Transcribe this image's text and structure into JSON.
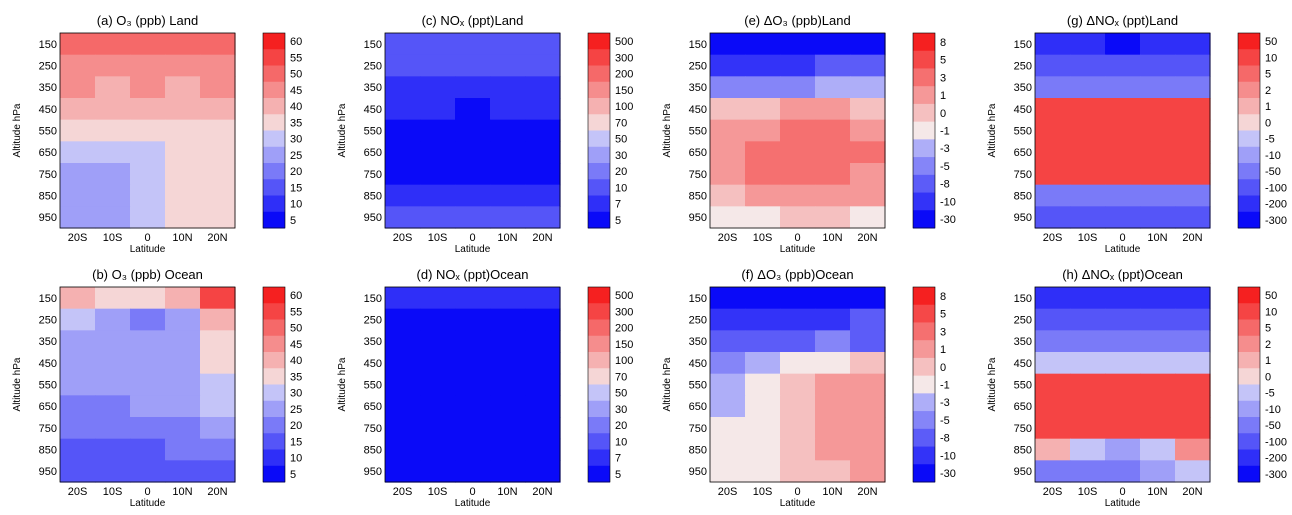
{
  "figure": {
    "panels": [
      {
        "key": "a",
        "title": "(a)  O₃ (ppb) Land",
        "xlabel": "Latitude",
        "ylabel": "Altitude hPa",
        "levels": [
          "60",
          "55",
          "50",
          "45",
          "40",
          "35",
          "30",
          "25",
          "20",
          "15",
          "10",
          "5"
        ],
        "diverging": false
      },
      {
        "key": "c",
        "title": "(c)  NOₓ (ppt)Land",
        "xlabel": "Latitude",
        "ylabel": "Altitude hPa",
        "levels": [
          "500",
          "300",
          "200",
          "150",
          "100",
          "70",
          "50",
          "30",
          "20",
          "10",
          "7",
          "5"
        ],
        "diverging": false
      },
      {
        "key": "e",
        "title": "(e) ΔO₃ (ppb)Land",
        "xlabel": "Latitude",
        "ylabel": "Altitude hPa",
        "levels": [
          "8",
          "5",
          "3",
          "1",
          "0",
          "-1",
          "-3",
          "-5",
          "-8",
          "-10",
          "-30"
        ],
        "diverging": true
      },
      {
        "key": "g",
        "title": "(g)  ΔNOₓ (ppt)Land",
        "xlabel": "Latitude",
        "ylabel": "Altitude hPa",
        "levels": [
          "50",
          "10",
          "5",
          "2",
          "1",
          "0",
          "-5",
          "-10",
          "-50",
          "-100",
          "-200",
          "-300"
        ],
        "diverging": true
      },
      {
        "key": "b",
        "title": "(b)  O₃ (ppb) Ocean",
        "xlabel": "Latitude",
        "ylabel": "Altitude hPa",
        "levels": [
          "60",
          "55",
          "50",
          "45",
          "40",
          "35",
          "30",
          "25",
          "20",
          "15",
          "10",
          "5"
        ],
        "diverging": false
      },
      {
        "key": "d",
        "title": "(d)  NOₓ (ppt)Ocean",
        "xlabel": "Latitude",
        "ylabel": "Altitude hPa",
        "levels": [
          "500",
          "300",
          "200",
          "150",
          "100",
          "70",
          "50",
          "30",
          "20",
          "10",
          "7",
          "5"
        ],
        "diverging": false
      },
      {
        "key": "f",
        "title": "(f) ΔO₃ (ppb)Ocean",
        "xlabel": "Latitude",
        "ylabel": "Altitude hPa",
        "levels": [
          "8",
          "5",
          "3",
          "1",
          "0",
          "-1",
          "-3",
          "-5",
          "-8",
          "-10",
          "-30"
        ],
        "diverging": true
      },
      {
        "key": "h",
        "title": "(h)  ΔNOₓ (ppt)Ocean",
        "xlabel": "Latitude",
        "ylabel": "Altitude hPa",
        "levels": [
          "50",
          "10",
          "5",
          "2",
          "1",
          "0",
          "-5",
          "-10",
          "-50",
          "-100",
          "-200",
          "-300"
        ],
        "diverging": true
      }
    ]
  },
  "chart_data": [
    {
      "type": "heatmap",
      "panel": "a",
      "title": "(a)  O₃ (ppb) Land",
      "xlabel": "Latitude",
      "ylabel": "Altitude hPa",
      "x": [
        "20S",
        "10S",
        "0",
        "10N",
        "20N"
      ],
      "y": [
        "150",
        "250",
        "350",
        "450",
        "550",
        "650",
        "750",
        "850",
        "950"
      ],
      "colorbar": [
        "60",
        "55",
        "50",
        "45",
        "40",
        "35",
        "30",
        "25",
        "20",
        "15",
        "10",
        "5"
      ],
      "values": [
        [
          53,
          53,
          52,
          53,
          54
        ],
        [
          47,
          46,
          48,
          46,
          48
        ],
        [
          46,
          44,
          47,
          44,
          46
        ],
        [
          42,
          42,
          42,
          42,
          42
        ],
        [
          38,
          38,
          37,
          38,
          37
        ],
        [
          33,
          33,
          34,
          35,
          37
        ],
        [
          27,
          28,
          33,
          37,
          37
        ],
        [
          25,
          27,
          32,
          35,
          36
        ],
        [
          26,
          27,
          32,
          36,
          36
        ]
      ]
    },
    {
      "type": "heatmap",
      "panel": "c",
      "title": "(c)  NOₓ (ppt)Land",
      "xlabel": "Latitude",
      "ylabel": "Altitude hPa",
      "x": [
        "20S",
        "10S",
        "0",
        "10N",
        "20N"
      ],
      "y": [
        "150",
        "250",
        "350",
        "450",
        "550",
        "650",
        "750",
        "850",
        "950"
      ],
      "colorbar": [
        "500",
        "300",
        "200",
        "150",
        "100",
        "70",
        "50",
        "30",
        "20",
        "10",
        "7",
        "5"
      ],
      "values": [
        [
          11,
          11,
          11,
          11,
          11
        ],
        [
          10,
          10,
          11,
          10,
          10
        ],
        [
          8,
          9,
          9,
          9,
          8
        ],
        [
          7,
          7,
          6,
          7,
          7
        ],
        [
          5,
          5,
          5,
          5,
          5
        ],
        [
          6,
          6,
          5,
          6,
          6
        ],
        [
          6,
          6,
          6,
          6,
          6
        ],
        [
          8,
          8,
          8,
          8,
          8
        ],
        [
          10,
          10,
          10,
          10,
          10
        ]
      ]
    },
    {
      "type": "heatmap",
      "panel": "e",
      "title": "(e) ΔO₃ (ppb)Land",
      "xlabel": "Latitude",
      "ylabel": "Altitude hPa",
      "x": [
        "20S",
        "10S",
        "0",
        "10N",
        "20N"
      ],
      "y": [
        "150",
        "250",
        "350",
        "450",
        "550",
        "650",
        "750",
        "850",
        "950"
      ],
      "colorbar": [
        "8",
        "5",
        "3",
        "1",
        "0",
        "-1",
        "-3",
        "-5",
        "-8",
        "-10",
        "-30"
      ],
      "values": [
        [
          -30,
          -30,
          -30,
          -30,
          -30
        ],
        [
          -9,
          -9,
          -9,
          -8,
          -7
        ],
        [
          -4,
          -4,
          -5,
          -3,
          -3
        ],
        [
          0.3,
          0.5,
          1.5,
          1,
          0.5
        ],
        [
          1,
          2,
          3.5,
          3,
          2
        ],
        [
          2,
          3,
          4,
          3.5,
          3
        ],
        [
          2,
          3,
          3.5,
          3,
          2.5
        ],
        [
          0.5,
          1.5,
          2,
          1.5,
          1
        ],
        [
          -0.5,
          -0.5,
          0.2,
          0.5,
          -0.5
        ]
      ]
    },
    {
      "type": "heatmap",
      "panel": "g",
      "title": "(g)  ΔNOₓ (ppt)Land",
      "xlabel": "Latitude",
      "ylabel": "Altitude hPa",
      "x": [
        "20S",
        "10S",
        "0",
        "10N",
        "20N"
      ],
      "y": [
        "150",
        "250",
        "350",
        "450",
        "550",
        "650",
        "750",
        "850",
        "950"
      ],
      "colorbar": [
        "50",
        "10",
        "5",
        "2",
        "1",
        "0",
        "-5",
        "-10",
        "-50",
        "-100",
        "-200",
        "-300"
      ],
      "values": [
        [
          -150,
          -150,
          -250,
          -150,
          -150
        ],
        [
          -60,
          -60,
          -60,
          -60,
          -60
        ],
        [
          -15,
          -15,
          -15,
          -15,
          -15
        ],
        [
          20,
          25,
          30,
          25,
          15
        ],
        [
          25,
          30,
          35,
          30,
          20
        ],
        [
          25,
          30,
          35,
          30,
          20
        ],
        [
          30,
          25,
          20,
          35,
          30
        ],
        [
          -30,
          -40,
          -50,
          -40,
          -30
        ],
        [
          -80,
          -90,
          -100,
          -90,
          -80
        ]
      ]
    },
    {
      "type": "heatmap",
      "panel": "b",
      "title": "(b)  O₃ (ppb) Ocean",
      "xlabel": "Latitude",
      "ylabel": "Altitude hPa",
      "x": [
        "20S",
        "10S",
        "0",
        "10N",
        "20N"
      ],
      "y": [
        "150",
        "250",
        "350",
        "450",
        "550",
        "650",
        "750",
        "850",
        "950"
      ],
      "colorbar": [
        "60",
        "55",
        "50",
        "45",
        "40",
        "35",
        "30",
        "25",
        "20",
        "15",
        "10",
        "5"
      ],
      "values": [
        [
          44,
          37,
          37,
          40,
          57
        ],
        [
          30,
          27,
          22,
          28,
          44
        ],
        [
          29,
          26,
          26,
          28,
          39
        ],
        [
          26,
          27,
          26,
          28,
          36
        ],
        [
          25,
          26,
          26,
          28,
          33
        ],
        [
          24,
          24,
          25,
          26,
          31
        ],
        [
          22,
          22,
          22,
          23,
          27
        ],
        [
          18,
          18,
          19,
          21,
          23
        ],
        [
          16,
          16,
          17,
          18,
          19
        ]
      ]
    },
    {
      "type": "heatmap",
      "panel": "d",
      "title": "(d)  NOₓ (ppt)Ocean",
      "xlabel": "Latitude",
      "ylabel": "Altitude hPa",
      "x": [
        "20S",
        "10S",
        "0",
        "10N",
        "20N"
      ],
      "y": [
        "150",
        "250",
        "350",
        "450",
        "550",
        "650",
        "750",
        "850",
        "950"
      ],
      "colorbar": [
        "500",
        "300",
        "200",
        "150",
        "100",
        "70",
        "50",
        "30",
        "20",
        "10",
        "7",
        "5"
      ],
      "values": [
        [
          7,
          7,
          7,
          7,
          7
        ],
        [
          5.5,
          5.5,
          5.5,
          5.5,
          5.5
        ],
        [
          4.5,
          4.5,
          4.5,
          4.5,
          4.5
        ],
        [
          3.5,
          3.5,
          3.5,
          3.5,
          3.5
        ],
        [
          2.5,
          2.5,
          2.5,
          2.5,
          2.5
        ],
        [
          2.5,
          2.5,
          2.5,
          2.5,
          3
        ],
        [
          2.5,
          2.5,
          2.5,
          2.5,
          3
        ],
        [
          2.2,
          2.4,
          2.5,
          2.5,
          3
        ],
        [
          1.5,
          2,
          2.5,
          2.5,
          3
        ]
      ]
    },
    {
      "type": "heatmap",
      "panel": "f",
      "title": "(f) ΔO₃ (ppb)Ocean",
      "xlabel": "Latitude",
      "ylabel": "Altitude hPa",
      "x": [
        "20S",
        "10S",
        "0",
        "10N",
        "20N"
      ],
      "y": [
        "150",
        "250",
        "350",
        "450",
        "550",
        "650",
        "750",
        "850",
        "950"
      ],
      "colorbar": [
        "8",
        "5",
        "3",
        "1",
        "0",
        "-1",
        "-3",
        "-5",
        "-8",
        "-10",
        "-30"
      ],
      "values": [
        [
          -30,
          -30,
          -30,
          -30,
          -30
        ],
        [
          -9,
          -9,
          -9,
          -9,
          -8
        ],
        [
          -8,
          -7,
          -6,
          -5,
          -6
        ],
        [
          -5,
          -3,
          -1,
          -0.5,
          0.5
        ],
        [
          -3,
          -1,
          0.5,
          1,
          1.5
        ],
        [
          -1.5,
          -0.5,
          0.5,
          1,
          1.5
        ],
        [
          -1,
          -0.5,
          0.5,
          1,
          1.5
        ],
        [
          -0.5,
          -0.5,
          0.5,
          1,
          1.5
        ],
        [
          -0.5,
          -0.5,
          0.3,
          0.5,
          1
        ]
      ]
    },
    {
      "type": "heatmap",
      "panel": "h",
      "title": "(h)  ΔNOₓ (ppt)Ocean",
      "xlabel": "Latitude",
      "ylabel": "Altitude hPa",
      "x": [
        "20S",
        "10S",
        "0",
        "10N",
        "20N"
      ],
      "y": [
        "150",
        "250",
        "350",
        "450",
        "550",
        "650",
        "750",
        "850",
        "950"
      ],
      "colorbar": [
        "50",
        "10",
        "5",
        "2",
        "1",
        "0",
        "-5",
        "-10",
        "-50",
        "-100",
        "-200",
        "-300"
      ],
      "values": [
        [
          -150,
          -150,
          -150,
          -150,
          -150
        ],
        [
          -60,
          -60,
          -60,
          -60,
          -60
        ],
        [
          -15,
          -15,
          -15,
          -15,
          -15
        ],
        [
          -2,
          -1,
          -1,
          -1,
          -2
        ],
        [
          15,
          15,
          15,
          15,
          15
        ],
        [
          15,
          15,
          15,
          15,
          20
        ],
        [
          10,
          10,
          10,
          10,
          25
        ],
        [
          1,
          -5,
          -10,
          -5,
          2
        ],
        [
          -20,
          -30,
          -20,
          -10,
          -5
        ]
      ]
    }
  ]
}
